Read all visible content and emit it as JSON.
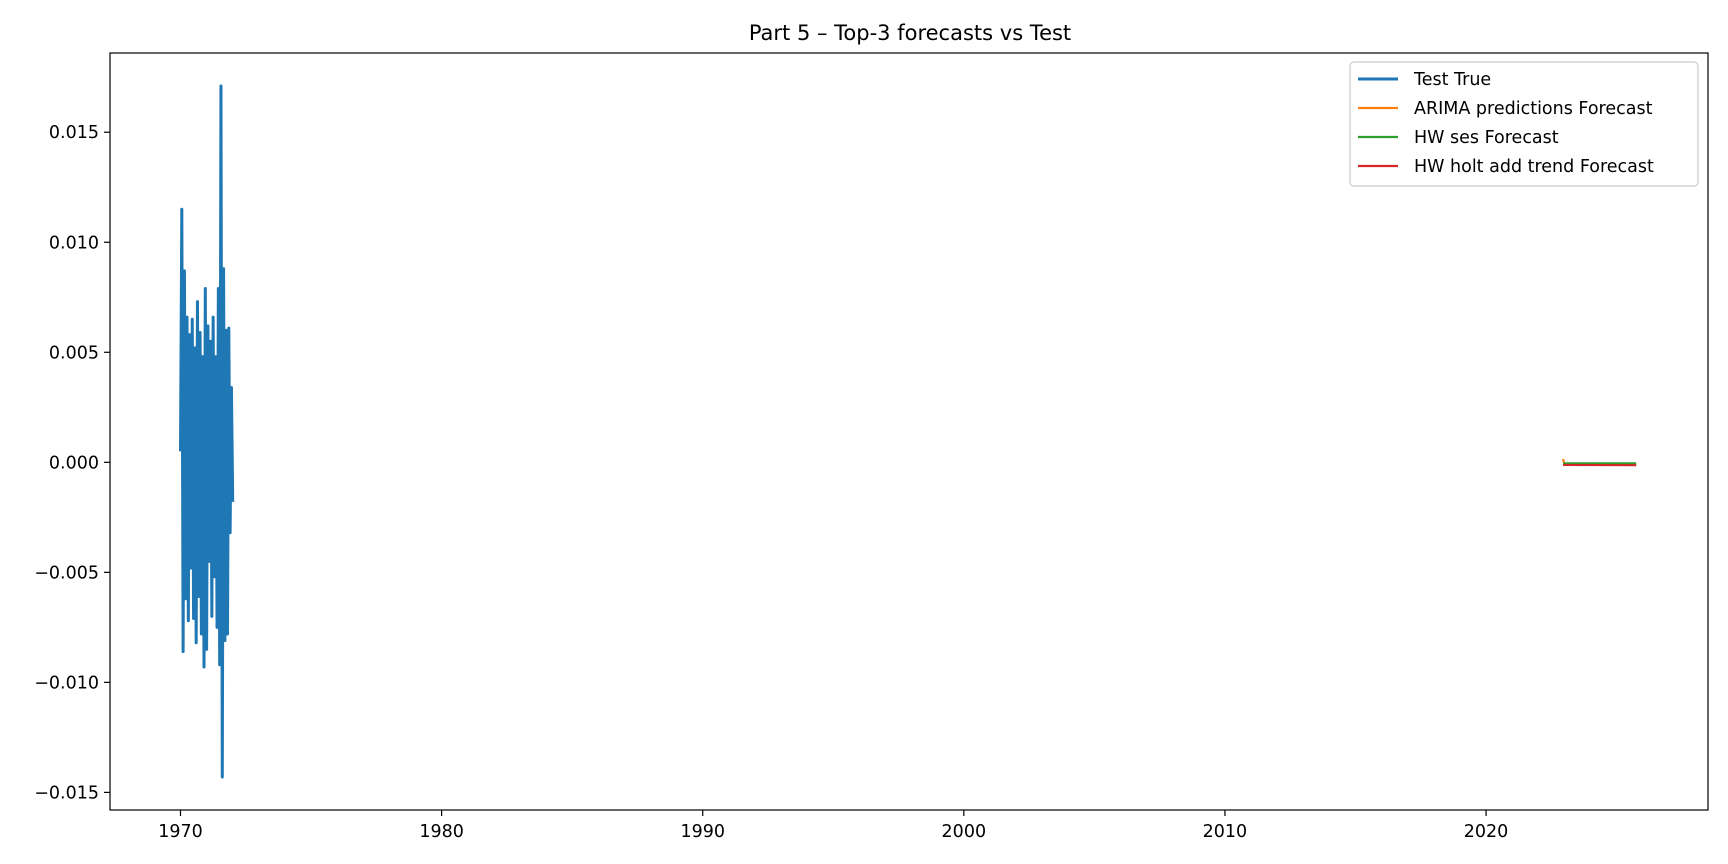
{
  "chart_data": {
    "type": "line",
    "title": "Part 5 – Top-3 forecasts vs Test",
    "xlabel": "",
    "ylabel": "",
    "xlim": [
      1967.3,
      2028.5
    ],
    "ylim": [
      -0.0158,
      0.0186
    ],
    "x_ticks": [
      1970,
      1980,
      1990,
      2000,
      2010,
      2020
    ],
    "x_tick_labels": [
      "1970",
      "1980",
      "1990",
      "2000",
      "2010",
      "2020"
    ],
    "y_ticks": [
      -0.015,
      -0.01,
      -0.005,
      0.0,
      0.005,
      0.01,
      0.015
    ],
    "y_tick_labels": [
      "−0.015",
      "−0.010",
      "−0.005",
      "0.000",
      "0.005",
      "0.010",
      "0.015"
    ],
    "grid": false,
    "legend_position": "top-right",
    "series": [
      {
        "name": "Test True",
        "color": "#1f77b4",
        "x": [
          1970.0,
          1970.05,
          1970.1,
          1970.15,
          1970.2,
          1970.25,
          1970.3,
          1970.35,
          1970.4,
          1970.45,
          1970.5,
          1970.55,
          1970.6,
          1970.65,
          1970.7,
          1970.75,
          1970.8,
          1970.85,
          1970.9,
          1970.95,
          1971.0,
          1971.05,
          1971.1,
          1971.15,
          1971.2,
          1971.25,
          1971.3,
          1971.35,
          1971.4,
          1971.45,
          1971.5,
          1971.55,
          1971.6,
          1971.65,
          1971.7,
          1971.75,
          1971.8,
          1971.85,
          1971.9,
          1971.95,
          1972.0
        ],
        "y": [
          0.0005,
          0.0115,
          -0.0086,
          0.0087,
          -0.0062,
          0.0066,
          -0.0072,
          0.0058,
          -0.0048,
          0.0065,
          -0.0071,
          0.0052,
          -0.0082,
          0.0073,
          -0.0061,
          0.0059,
          -0.0078,
          0.0048,
          -0.0093,
          0.0079,
          -0.0085,
          0.0062,
          -0.0045,
          0.0055,
          -0.007,
          0.0066,
          -0.0052,
          0.0048,
          -0.0075,
          0.0079,
          -0.0092,
          0.0171,
          -0.0143,
          0.0088,
          -0.0081,
          0.006,
          -0.0078,
          0.0061,
          -0.0032,
          0.0034,
          -0.0018
        ]
      },
      {
        "name": "ARIMA predictions Forecast",
        "color": "#ff7f0e",
        "x": [
          2022.95,
          2023.0,
          2023.1,
          2023.5,
          2024.0,
          2024.5,
          2025.0,
          2025.5,
          2025.75
        ],
        "y": [
          0.00015,
          -0.0001,
          -8e-05,
          -8e-05,
          -8e-05,
          -8e-05,
          -8e-05,
          -8e-05,
          -8e-05
        ]
      },
      {
        "name": "HW ses Forecast",
        "color": "#2ca02c",
        "x": [
          2022.95,
          2025.75
        ],
        "y": [
          -5e-05,
          -5e-05
        ]
      },
      {
        "name": "HW holt add trend Forecast",
        "color": "#d62728",
        "x": [
          2022.95,
          2025.75
        ],
        "y": [
          -0.00012,
          -0.00013
        ]
      }
    ]
  }
}
